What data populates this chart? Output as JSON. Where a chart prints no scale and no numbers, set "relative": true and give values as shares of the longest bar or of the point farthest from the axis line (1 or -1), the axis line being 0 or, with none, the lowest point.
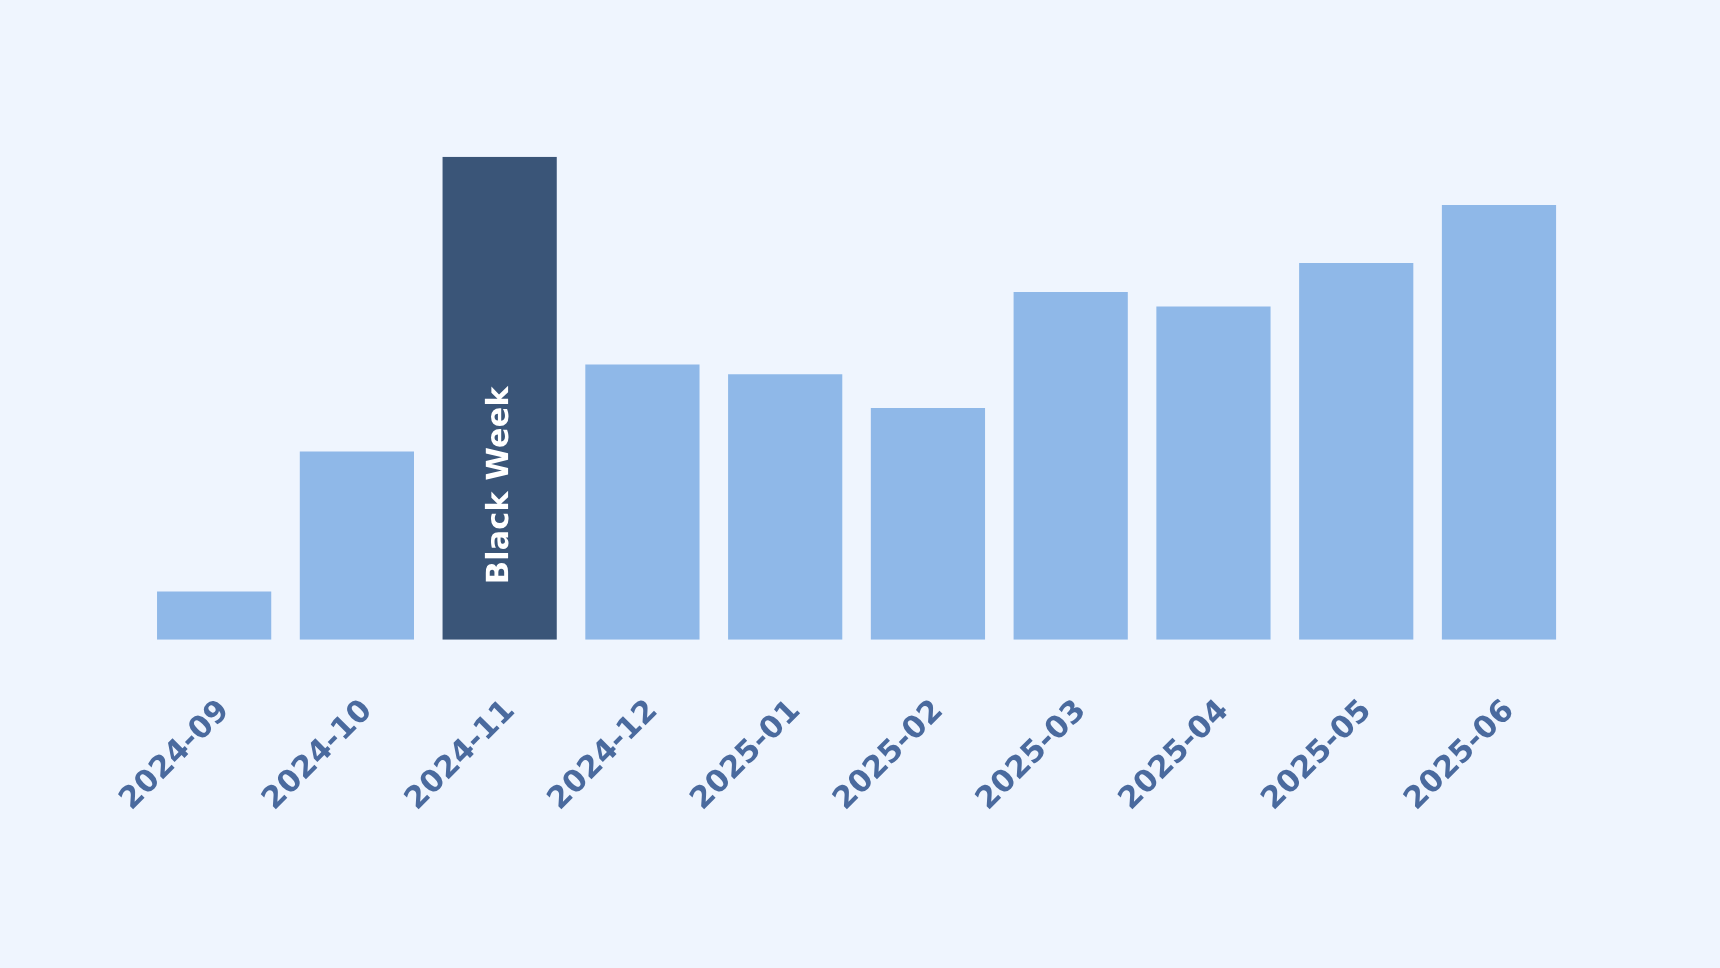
{
  "chart_data": {
    "type": "bar",
    "relative": true,
    "categories": [
      "2024-09",
      "2024-10",
      "2024-11",
      "2024-12",
      "2025-01",
      "2025-02",
      "2025-03",
      "2025-04",
      "2025-05",
      "2025-06"
    ],
    "values": [
      0.1,
      0.39,
      1,
      0.57,
      0.55,
      0.48,
      0.72,
      0.69,
      0.78,
      0.9
    ],
    "colors": [
      "#8fb8e8",
      "#8fb8e8",
      "#3a5578",
      "#8fb8e8",
      "#8fb8e8",
      "#8fb8e8",
      "#8fb8e8",
      "#8fb8e8",
      "#8fb8e8",
      "#8fb8e8"
    ],
    "annotations": [
      "Black Week"
    ],
    "grid": false,
    "legend": false
  }
}
